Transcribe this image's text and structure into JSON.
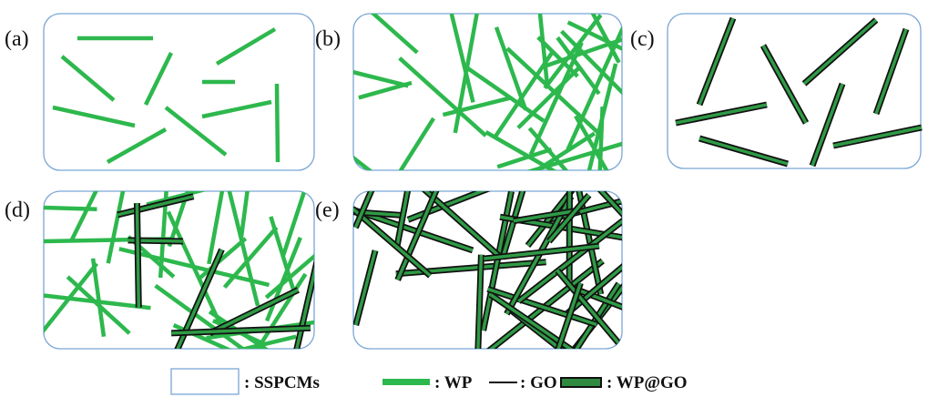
{
  "panels": [
    {
      "label": "(a)"
    },
    {
      "label": "(b)"
    },
    {
      "label": "(c)"
    },
    {
      "label": "(d)"
    },
    {
      "label": "(e)"
    }
  ],
  "legend": [
    {
      "label": ": SSPCMs"
    },
    {
      "label": ": WP"
    },
    {
      "label": ": GO"
    },
    {
      "label": ": WP@GO"
    }
  ]
}
